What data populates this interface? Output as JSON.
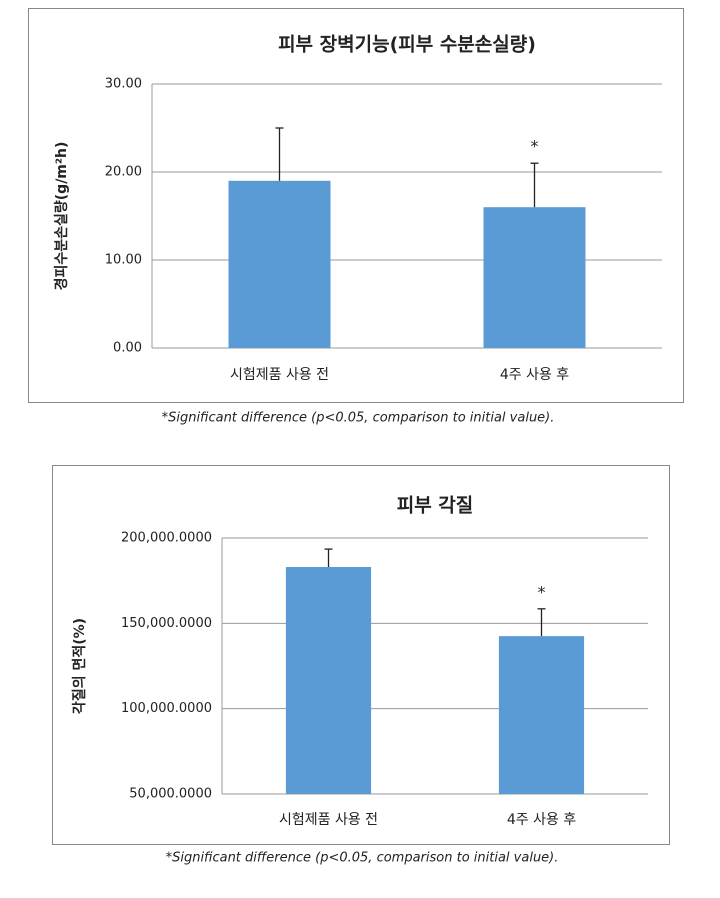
{
  "chart_data": [
    {
      "type": "bar",
      "title": "피부 장벽기능(피부 수분손실량)",
      "y_label": "경피수분손실량(g/m²h)",
      "categories": [
        "시험제품 사용 전",
        "4주 사용 후"
      ],
      "values": [
        19,
        16
      ],
      "errors": [
        6,
        5
      ],
      "value_annotations": [
        null,
        "*"
      ],
      "color": "#5b9bd5",
      "ylim": [
        0,
        30
      ],
      "yticks": [
        {
          "value": 0,
          "label": "0.00"
        },
        {
          "value": 10,
          "label": "10.00"
        },
        {
          "value": 20,
          "label": "20.00"
        },
        {
          "value": 30,
          "label": "30.00"
        }
      ],
      "grid": true,
      "footnote": "*Significant difference (p<0.05, comparison to initial value)."
    },
    {
      "type": "bar",
      "title": "피부 각질",
      "y_label": "각질의 면적(%)",
      "categories": [
        "시험제품 사용 전",
        "4주 사용 후"
      ],
      "values": [
        183000,
        142500
      ],
      "errors": [
        10500,
        16000
      ],
      "value_annotations": [
        null,
        "*"
      ],
      "color": "#5b9bd5",
      "ylim": [
        50000,
        200000
      ],
      "yticks": [
        {
          "value": 50000,
          "label": "50,000.0000"
        },
        {
          "value": 100000,
          "label": "100,000.0000"
        },
        {
          "value": 150000,
          "label": "150,000.0000"
        },
        {
          "value": 200000,
          "label": "200,000.0000"
        }
      ],
      "grid": true,
      "footnote": "*Significant difference (p<0.05, comparison to initial value)."
    }
  ]
}
